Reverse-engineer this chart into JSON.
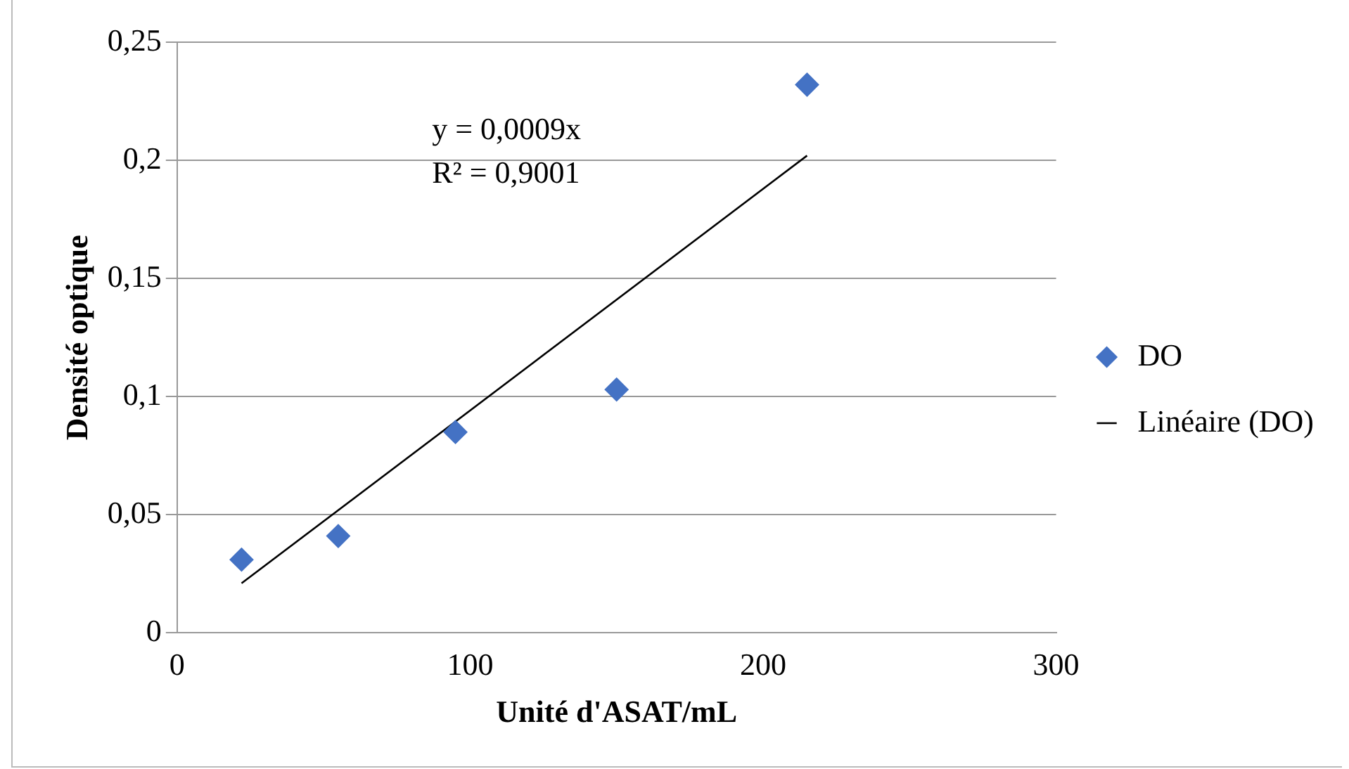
{
  "chart_data": {
    "type": "scatter",
    "xlabel": "Unité d'ASAT/mL",
    "ylabel": "Densité optique",
    "series": [
      {
        "name": "DO",
        "color": "#4472c4",
        "x": [
          22,
          55,
          95,
          150,
          215
        ],
        "values": [
          0.031,
          0.041,
          0.085,
          0.103,
          0.232
        ],
        "marker": "diamond"
      },
      {
        "name": "Linéaire (DO)",
        "type": "line",
        "color": "#000000",
        "x": [
          22,
          215
        ],
        "values": [
          0.021,
          0.202
        ],
        "marker": "none"
      }
    ],
    "xlim": [
      0,
      300
    ],
    "xticks": [
      0,
      100,
      200,
      300
    ],
    "ylim": [
      0,
      0.25
    ],
    "yticks": [
      {
        "value": 0,
        "label": "0"
      },
      {
        "value": 0.05,
        "label": "0,05"
      },
      {
        "value": 0.1,
        "label": "0,1"
      },
      {
        "value": 0.15,
        "label": "0,15"
      },
      {
        "value": 0.2,
        "label": "0,2"
      },
      {
        "value": 0.25,
        "label": "0,25"
      }
    ],
    "grid": "y",
    "legend": "right",
    "annotations": [
      "y = 0,0009x",
      "R² = 0,9001"
    ]
  }
}
